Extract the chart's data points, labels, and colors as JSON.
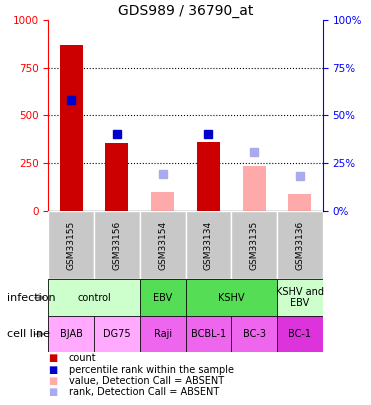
{
  "title": "GDS989 / 36790_at",
  "samples": [
    "GSM33155",
    "GSM33156",
    "GSM33154",
    "GSM33134",
    "GSM33135",
    "GSM33136"
  ],
  "bar_values": [
    870,
    355,
    null,
    360,
    null,
    null
  ],
  "bar_absent_values": [
    null,
    null,
    100,
    null,
    235,
    85
  ],
  "rank_values": [
    58,
    40,
    null,
    40,
    null,
    null
  ],
  "rank_absent_values": [
    null,
    null,
    19,
    null,
    31,
    18
  ],
  "bar_color": "#cc0000",
  "bar_absent_color": "#ffaaaa",
  "rank_color": "#0000cc",
  "rank_absent_color": "#aaaaee",
  "ylim_left": [
    0,
    1000
  ],
  "ylim_right": [
    0,
    100
  ],
  "yticks_left": [
    0,
    250,
    500,
    750,
    1000
  ],
  "yticks_right": [
    0,
    25,
    50,
    75,
    100
  ],
  "infection_groups": [
    {
      "label": "control",
      "span": [
        0,
        2
      ],
      "color": "#ccffcc"
    },
    {
      "label": "EBV",
      "span": [
        2,
        3
      ],
      "color": "#55dd55"
    },
    {
      "label": "KSHV",
      "span": [
        3,
        5
      ],
      "color": "#55dd55"
    },
    {
      "label": "KSHV and\nEBV",
      "span": [
        5,
        6
      ],
      "color": "#ccffcc"
    }
  ],
  "cell_lines": [
    {
      "label": "BJAB",
      "span": [
        0,
        1
      ],
      "color": "#ffaaff"
    },
    {
      "label": "DG75",
      "span": [
        1,
        2
      ],
      "color": "#ffaaff"
    },
    {
      "label": "Raji",
      "span": [
        2,
        3
      ],
      "color": "#ee66ee"
    },
    {
      "label": "BCBL-1",
      "span": [
        3,
        4
      ],
      "color": "#ee66ee"
    },
    {
      "label": "BC-3",
      "span": [
        4,
        5
      ],
      "color": "#ee66ee"
    },
    {
      "label": "BC-1",
      "span": [
        5,
        6
      ],
      "color": "#dd33dd"
    }
  ],
  "infection_label": "infection",
  "cell_line_label": "cell line",
  "legend_items": [
    {
      "label": "count",
      "color": "#cc0000"
    },
    {
      "label": "percentile rank within the sample",
      "color": "#0000cc"
    },
    {
      "label": "value, Detection Call = ABSENT",
      "color": "#ffaaaa"
    },
    {
      "label": "rank, Detection Call = ABSENT",
      "color": "#aaaaee"
    }
  ],
  "bar_width": 0.5,
  "sample_gray": "#c8c8c8"
}
